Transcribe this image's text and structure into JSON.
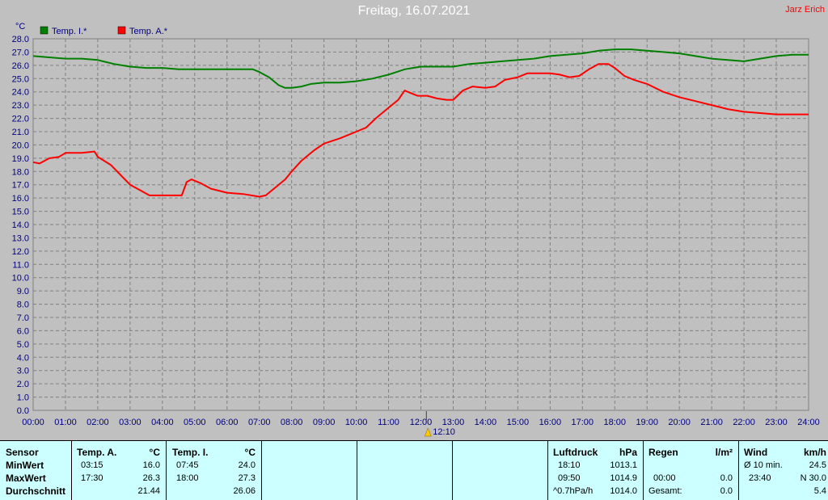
{
  "header": {
    "title": "Freitag, 16.07.2021",
    "author": "Jarz Erich"
  },
  "chart_data": {
    "type": "line",
    "unit_label": "°C",
    "ylim": [
      0,
      28
    ],
    "yticks": [
      "0.0",
      "1.0",
      "2.0",
      "3.0",
      "4.0",
      "5.0",
      "6.0",
      "7.0",
      "8.0",
      "9.0",
      "10.0",
      "11.0",
      "12.0",
      "13.0",
      "14.0",
      "15.0",
      "16.0",
      "17.0",
      "18.0",
      "19.0",
      "20.0",
      "21.0",
      "22.0",
      "23.0",
      "24.0",
      "25.0",
      "26.0",
      "27.0",
      "28.0"
    ],
    "xticks": [
      "00:00",
      "01:00",
      "02:00",
      "03:00",
      "04:00",
      "05:00",
      "06:00",
      "07:00",
      "08:00",
      "09:00",
      "10:00",
      "11:00",
      "12:00",
      "13:00",
      "14:00",
      "15:00",
      "16:00",
      "17:00",
      "18:00",
      "19:00",
      "20:00",
      "21:00",
      "22:00",
      "23:00",
      "24:00"
    ],
    "xlim": [
      0,
      24
    ],
    "grid": true,
    "legend_position": "top-left",
    "marker_label": "12:10",
    "marker_x": 12.17,
    "series": [
      {
        "name": "Temp. I.*",
        "color": "#008000",
        "x": [
          0,
          0.5,
          1,
          1.5,
          2,
          2.5,
          3,
          3.5,
          4,
          4.5,
          5,
          5.5,
          6,
          6.5,
          6.8,
          7,
          7.3,
          7.6,
          7.8,
          8,
          8.3,
          8.6,
          9,
          9.5,
          10,
          10.5,
          11,
          11.5,
          12,
          12.5,
          13,
          13.5,
          14,
          14.5,
          15,
          15.5,
          16,
          16.5,
          17,
          17.5,
          18,
          18.5,
          19,
          19.5,
          20,
          20.5,
          21,
          21.5,
          22,
          22.5,
          23,
          23.5,
          24
        ],
        "y": [
          26.7,
          26.6,
          26.5,
          26.5,
          26.4,
          26.1,
          25.9,
          25.8,
          25.8,
          25.7,
          25.7,
          25.7,
          25.7,
          25.7,
          25.7,
          25.5,
          25.1,
          24.5,
          24.3,
          24.3,
          24.4,
          24.6,
          24.7,
          24.7,
          24.8,
          25.0,
          25.3,
          25.7,
          25.9,
          25.9,
          25.9,
          26.1,
          26.2,
          26.3,
          26.4,
          26.5,
          26.7,
          26.8,
          26.9,
          27.1,
          27.2,
          27.2,
          27.1,
          27.0,
          26.9,
          26.7,
          26.5,
          26.4,
          26.3,
          26.5,
          26.7,
          26.8,
          26.8
        ]
      },
      {
        "name": "Temp. A.*",
        "color": "#ff0000",
        "x": [
          0,
          0.2,
          0.5,
          0.8,
          1,
          1.5,
          1.9,
          2,
          2.4,
          2.8,
          3,
          3.3,
          3.6,
          4,
          4.4,
          4.6,
          4.75,
          4.9,
          5.2,
          5.5,
          6,
          6.5,
          7,
          7.2,
          7.5,
          7.8,
          8,
          8.3,
          8.7,
          9,
          9.5,
          10,
          10.3,
          10.6,
          11,
          11.3,
          11.5,
          11.7,
          11.9,
          12.2,
          12.5,
          12.8,
          13,
          13.3,
          13.6,
          14,
          14.3,
          14.6,
          15,
          15.3,
          15.5,
          15.8,
          16,
          16.3,
          16.6,
          16.9,
          17.2,
          17.5,
          17.8,
          18,
          18.3,
          18.6,
          19,
          19.5,
          20,
          20.5,
          21,
          21.5,
          22,
          22.5,
          23,
          23.5,
          24
        ],
        "y": [
          18.7,
          18.6,
          19.0,
          19.1,
          19.4,
          19.4,
          19.5,
          19.1,
          18.5,
          17.5,
          17.0,
          16.6,
          16.2,
          16.2,
          16.2,
          16.2,
          17.2,
          17.4,
          17.1,
          16.7,
          16.4,
          16.3,
          16.1,
          16.2,
          16.8,
          17.4,
          18.0,
          18.8,
          19.6,
          20.1,
          20.5,
          21.0,
          21.3,
          22.0,
          22.8,
          23.4,
          24.1,
          23.9,
          23.7,
          23.7,
          23.5,
          23.4,
          23.4,
          24.1,
          24.4,
          24.3,
          24.4,
          24.9,
          25.1,
          25.4,
          25.4,
          25.4,
          25.4,
          25.3,
          25.1,
          25.2,
          25.7,
          26.1,
          26.1,
          25.8,
          25.2,
          24.9,
          24.6,
          24.0,
          23.6,
          23.3,
          23.0,
          22.7,
          22.5,
          22.4,
          22.3,
          22.3,
          22.3
        ]
      }
    ]
  },
  "stats": {
    "sensor": {
      "header": "Sensor",
      "min": "MinWert",
      "max": "MaxWert",
      "avg": "Durchschnitt"
    },
    "temp_a": {
      "header": "Temp. A.",
      "unit": "°C",
      "min_time": "03:15",
      "min_val": "16.0",
      "max_time": "17:30",
      "max_val": "26.3",
      "avg": "21.44"
    },
    "temp_i": {
      "header": "Temp. I.",
      "unit": "°C",
      "min_time": "07:45",
      "min_val": "24.0",
      "max_time": "18:00",
      "max_val": "27.3",
      "avg": "26.06"
    },
    "pressure": {
      "header": "Luftdruck",
      "unit": "hPa",
      "r1_time": "18:10",
      "r1_val": "1013.1",
      "r2_time": "09:50",
      "r2_val": "1014.9",
      "r3_label": "^0.7hPa/h",
      "r3_val": "1014.0"
    },
    "rain": {
      "header": "Regen",
      "unit": "l/m²",
      "r2_time": "00:00",
      "r2_val": "0.0",
      "r3_label": "Gesamt:",
      "r3_val": "0.0"
    },
    "wind": {
      "header": "Wind",
      "unit": "km/h",
      "r1_label": "Ø 10 min.",
      "r1_val": "24.5",
      "r2_time": "23:40",
      "r2_val": "N 30.0",
      "r3_val": "5.4"
    }
  }
}
